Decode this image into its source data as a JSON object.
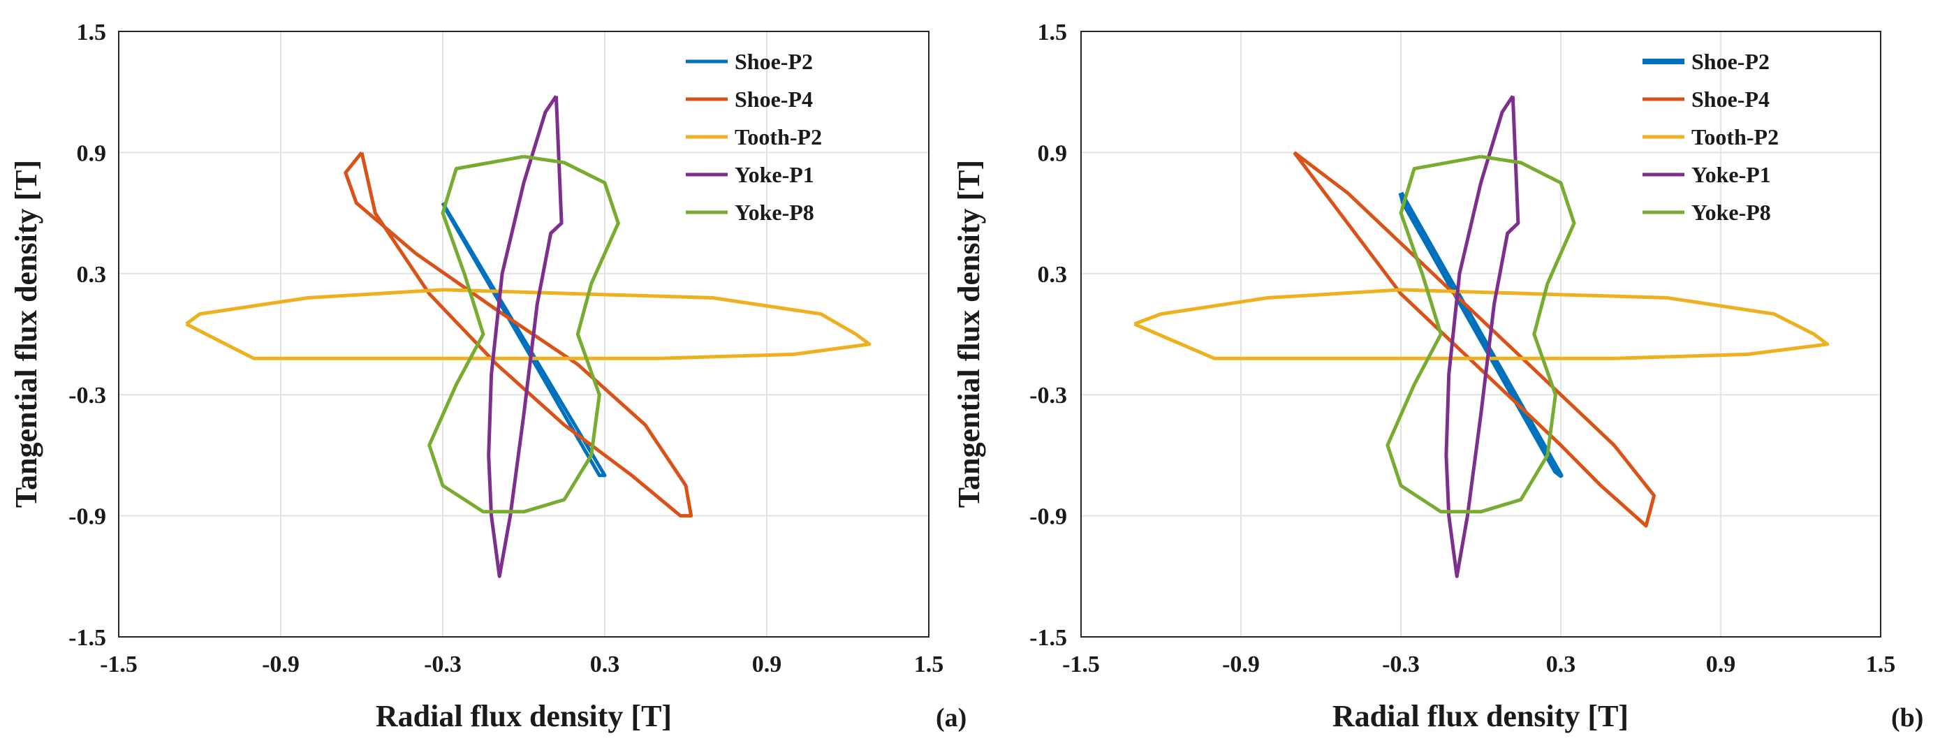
{
  "chart_data": [
    {
      "type": "line",
      "panel_label": "(a)",
      "xlabel": "Radial flux density [T]",
      "ylabel": "Tangential flux density [T]",
      "xlim": [
        -1.5,
        1.5
      ],
      "ylim": [
        -1.5,
        1.5
      ],
      "xticks": [
        "-1.5",
        "-0.9",
        "-0.3",
        "0.3",
        "0.9",
        "1.5"
      ],
      "yticks": [
        "1.5",
        "0.9",
        "0.3",
        "-0.3",
        "-0.9",
        "-1.5"
      ],
      "grid": true,
      "legend_position": "top-right",
      "series": [
        {
          "name": "Shoe-P2",
          "color": "#0072BD",
          "x": [
            -0.3,
            0.3,
            0.28,
            -0.29,
            -0.3
          ],
          "y": [
            0.65,
            -0.7,
            -0.7,
            0.62,
            0.65
          ]
        },
        {
          "name": "Shoe-P4",
          "color": "#D95319",
          "x": [
            -0.6,
            -0.66,
            -0.62,
            -0.4,
            -0.1,
            0.2,
            0.45,
            0.6,
            0.62,
            0.58,
            0.4,
            0.15,
            -0.1,
            -0.35,
            -0.55,
            -0.6
          ],
          "y": [
            0.9,
            0.8,
            0.65,
            0.4,
            0.12,
            -0.15,
            -0.45,
            -0.75,
            -0.9,
            -0.9,
            -0.7,
            -0.45,
            -0.15,
            0.2,
            0.6,
            0.9
          ]
        },
        {
          "name": "Tooth-P2",
          "color": "#EDB120",
          "x": [
            -1.25,
            -1.2,
            -0.8,
            -0.3,
            0.2,
            0.7,
            1.1,
            1.23,
            1.28,
            1.0,
            0.5,
            0.0,
            -0.5,
            -1.0,
            -1.25
          ],
          "y": [
            0.05,
            0.1,
            0.18,
            0.22,
            0.2,
            0.18,
            0.1,
            0.0,
            -0.05,
            -0.1,
            -0.12,
            -0.12,
            -0.12,
            -0.12,
            0.05
          ]
        },
        {
          "name": "Yoke-P1",
          "color": "#7E2F8E",
          "x": [
            0.12,
            0.08,
            0.0,
            -0.08,
            -0.12,
            -0.13,
            -0.12,
            -0.09,
            -0.05,
            0.0,
            0.05,
            0.1,
            0.14,
            0.12
          ],
          "y": [
            1.18,
            1.1,
            0.75,
            0.3,
            -0.2,
            -0.6,
            -0.9,
            -1.2,
            -0.9,
            -0.4,
            0.15,
            0.5,
            0.55,
            1.18
          ]
        },
        {
          "name": "Yoke-P8",
          "color": "#77AC30",
          "x": [
            0.0,
            -0.25,
            -0.3,
            -0.22,
            -0.15,
            -0.25,
            -0.35,
            -0.3,
            -0.15,
            0.0,
            0.15,
            0.25,
            0.28,
            0.2,
            0.25,
            0.35,
            0.3,
            0.15,
            0.0
          ],
          "y": [
            0.88,
            0.82,
            0.6,
            0.3,
            0.0,
            -0.25,
            -0.55,
            -0.75,
            -0.88,
            -0.88,
            -0.82,
            -0.6,
            -0.3,
            0.0,
            0.25,
            0.55,
            0.75,
            0.85,
            0.88
          ]
        }
      ]
    },
    {
      "type": "line",
      "panel_label": "(b)",
      "xlabel": "Radial flux density [T]",
      "ylabel": "Tangential flux density [T]",
      "xlim": [
        -1.5,
        1.5
      ],
      "ylim": [
        -1.5,
        1.5
      ],
      "xticks": [
        "-1.5",
        "-0.9",
        "-0.3",
        "0.3",
        "0.9",
        "1.5"
      ],
      "yticks": [
        "1.5",
        "0.9",
        "0.3",
        "-0.3",
        "-0.9",
        "-1.5"
      ],
      "grid": true,
      "legend_position": "top-right",
      "series": [
        {
          "name": "Shoe-P2",
          "color": "#0072BD",
          "x": [
            -0.3,
            0.3,
            0.28,
            -0.29,
            -0.3
          ],
          "y": [
            0.7,
            -0.7,
            -0.68,
            0.65,
            0.7
          ]
        },
        {
          "name": "Shoe-P4",
          "color": "#D95319",
          "x": [
            -0.7,
            -0.5,
            -0.3,
            -0.1,
            0.1,
            0.3,
            0.5,
            0.65,
            0.62,
            0.45,
            0.3,
            0.1,
            -0.1,
            -0.3,
            -0.5,
            -0.7
          ],
          "y": [
            0.9,
            0.7,
            0.45,
            0.2,
            -0.05,
            -0.3,
            -0.55,
            -0.8,
            -0.95,
            -0.75,
            -0.55,
            -0.3,
            -0.05,
            0.2,
            0.55,
            0.9
          ]
        },
        {
          "name": "Tooth-P2",
          "color": "#EDB120",
          "x": [
            -1.3,
            -1.2,
            -0.8,
            -0.3,
            0.2,
            0.7,
            1.1,
            1.25,
            1.3,
            1.0,
            0.5,
            0.0,
            -0.5,
            -1.0,
            -1.3
          ],
          "y": [
            0.05,
            0.1,
            0.18,
            0.22,
            0.2,
            0.18,
            0.1,
            0.0,
            -0.05,
            -0.1,
            -0.12,
            -0.12,
            -0.12,
            -0.12,
            0.05
          ]
        },
        {
          "name": "Yoke-P1",
          "color": "#7E2F8E",
          "x": [
            0.12,
            0.08,
            0.0,
            -0.08,
            -0.12,
            -0.13,
            -0.12,
            -0.09,
            -0.05,
            0.0,
            0.05,
            0.1,
            0.14,
            0.12
          ],
          "y": [
            1.18,
            1.1,
            0.75,
            0.3,
            -0.2,
            -0.6,
            -0.9,
            -1.2,
            -0.9,
            -0.4,
            0.15,
            0.5,
            0.55,
            1.18
          ]
        },
        {
          "name": "Yoke-P8",
          "color": "#77AC30",
          "x": [
            0.0,
            -0.25,
            -0.3,
            -0.22,
            -0.15,
            -0.25,
            -0.35,
            -0.3,
            -0.15,
            0.0,
            0.15,
            0.25,
            0.28,
            0.2,
            0.25,
            0.35,
            0.3,
            0.15,
            0.0
          ],
          "y": [
            0.88,
            0.82,
            0.6,
            0.3,
            0.0,
            -0.25,
            -0.55,
            -0.75,
            -0.88,
            -0.88,
            -0.82,
            -0.6,
            -0.3,
            0.0,
            0.25,
            0.55,
            0.75,
            0.85,
            0.88
          ]
        }
      ]
    }
  ]
}
